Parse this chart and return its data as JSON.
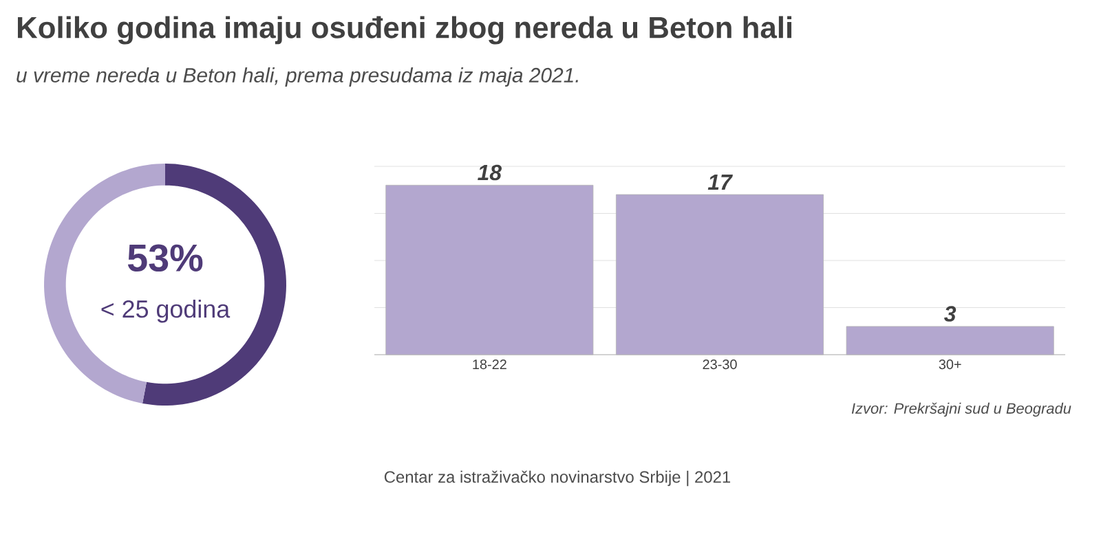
{
  "chart_data": [
    {
      "type": "donut",
      "title": "Koliko godina imaju osuđeni zbog nereda u Beton hali",
      "subtitle": "u vreme nereda u Beton hali, prema presudama iz maja 2021.",
      "categories": [
        "< 25 godina",
        null
      ],
      "values": [
        53,
        47
      ],
      "colors": [
        "#4f3b78",
        "#b3a7cf"
      ],
      "value_labels": [
        "53%",
        null
      ]
    },
    {
      "type": "bar",
      "categories": [
        "18-22",
        "23-30",
        "30+"
      ],
      "values": [
        18,
        17,
        3
      ],
      "color": "#b3a7cf",
      "ylim": [
        0,
        20
      ],
      "grid": "y",
      "tick_labels": "x",
      "data_labels": true,
      "annotations": [
        "Izvor: Prekršajni sud u Beogradu",
        "Centar za istraživačko novinarstvo Srbije | 2021"
      ]
    }
  ]
}
